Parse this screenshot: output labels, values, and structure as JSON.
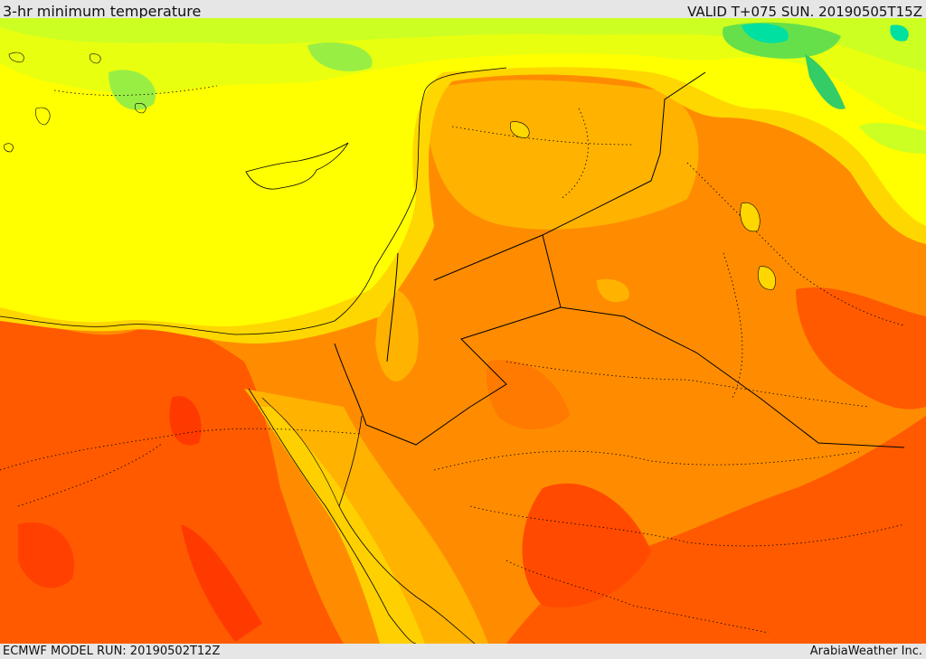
{
  "header": {
    "title": "3-hr minimum temperature",
    "valid_time": "VALID T+075 SUN. 20190505T15Z"
  },
  "footer": {
    "model_run": "ECMWF MODEL RUN: 20190502T12Z",
    "credit": "ArabiaWeather Inc."
  },
  "map": {
    "field": "3-hr minimum temperature",
    "palette": {
      "cool_green": "#33cc44",
      "light_green": "#99ee44",
      "yellow_green": "#ccff22",
      "yellow": "#ffff00",
      "gold": "#ffd700",
      "light_orange": "#ffb300",
      "orange": "#ff8c00",
      "dark_orange": "#ff6a00",
      "red_orange": "#ff4a00",
      "red": "#ff2a00",
      "cyan": "#00e0a0",
      "boundary": "#000000"
    }
  }
}
